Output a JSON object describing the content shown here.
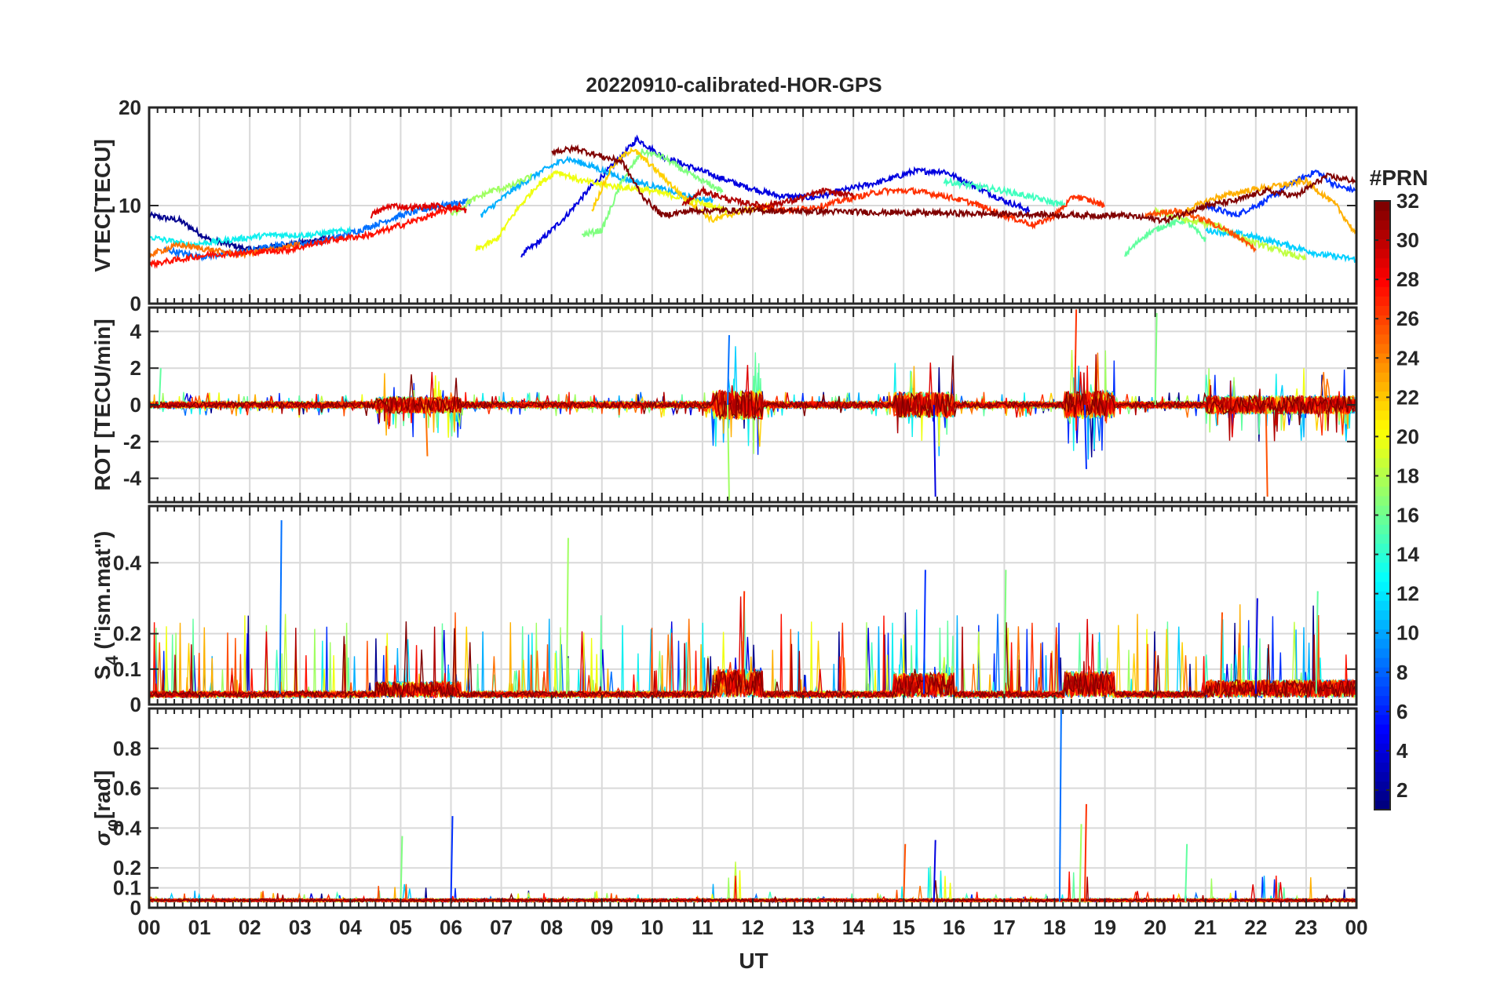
{
  "chart_data": {
    "type": "line",
    "title": "20220910-calibrated-HOR-GPS",
    "xlabel": "UT",
    "x_tick_labels": [
      "00",
      "01",
      "02",
      "03",
      "04",
      "05",
      "06",
      "07",
      "08",
      "09",
      "10",
      "11",
      "12",
      "13",
      "14",
      "15",
      "16",
      "17",
      "18",
      "19",
      "20",
      "21",
      "22",
      "23",
      "00"
    ],
    "xlim": [
      0,
      24
    ],
    "grid": true,
    "colormap": "jet",
    "colorbar": {
      "title": "#PRN",
      "range": [
        1,
        32
      ],
      "tick_labels": [
        "2",
        "4",
        "6",
        "8",
        "10",
        "12",
        "14",
        "16",
        "18",
        "20",
        "22",
        "24",
        "26",
        "28",
        "30",
        "32"
      ]
    },
    "panels": [
      {
        "id": "vtec",
        "ylabel": "VTEC[TECU]",
        "ylim": [
          0,
          20
        ],
        "yticks": [
          0,
          10,
          20
        ],
        "ytick_labels": [
          "0",
          "10",
          "20"
        ],
        "description_values": {
          "typical_range": [
            3,
            17
          ]
        }
      },
      {
        "id": "rot",
        "ylabel": "ROT [TECU/min]",
        "ylim": [
          -5.3,
          5.3
        ],
        "yticks": [
          -4,
          -2,
          0,
          2,
          4
        ],
        "ytick_labels": [
          "-4",
          "-2",
          "0",
          "2",
          "4"
        ]
      },
      {
        "id": "s4",
        "ylabel": "S4 (\"ism.mat\")",
        "ylabel_base": "S",
        "ylabel_sub": "4",
        "ylabel_rest": " (\"ism.mat\")",
        "ylim": [
          0,
          0.56
        ],
        "yticks": [
          0,
          0.1,
          0.2,
          0.4
        ],
        "ytick_labels": [
          "0",
          "0.1",
          "0.2",
          "0.4"
        ]
      },
      {
        "id": "sigma",
        "ylabel": "σφ[rad]",
        "ylabel_base": "σ",
        "ylabel_sub": "φ",
        "ylabel_rest": "[rad]",
        "ylim": [
          0,
          1.0
        ],
        "yticks": [
          0,
          0.1,
          0.2,
          0.4,
          0.6,
          0.8
        ],
        "ytick_labels": [
          "0",
          "0.1",
          "0.2",
          "0.4",
          "0.6",
          "0.8"
        ]
      }
    ],
    "series": [
      {
        "prn": 2,
        "color": "#00008f",
        "vtec": [
          [
            0.0,
            9.0
          ],
          [
            0.6,
            8.5
          ],
          [
            1.2,
            6.5
          ],
          [
            2.0,
            5.5
          ],
          [
            2.8,
            6.0
          ],
          [
            3.6,
            6.8
          ]
        ]
      },
      {
        "prn": 4,
        "color": "#0000df",
        "vtec": [
          [
            7.4,
            5.0
          ],
          [
            7.8,
            6.5
          ],
          [
            8.3,
            9.0
          ],
          [
            8.8,
            12.0
          ],
          [
            9.3,
            14.5
          ],
          [
            9.7,
            16.8
          ],
          [
            10.2,
            15.0
          ],
          [
            11.0,
            13.5
          ],
          [
            11.8,
            12.0
          ],
          [
            12.5,
            11.0
          ],
          [
            13.2,
            10.8
          ],
          [
            14.0,
            11.8
          ],
          [
            14.6,
            12.5
          ],
          [
            15.2,
            13.5
          ],
          [
            15.8,
            13.5
          ],
          [
            16.4,
            12.0
          ],
          [
            17.0,
            10.5
          ],
          [
            17.5,
            9.5
          ]
        ]
      },
      {
        "prn": 6,
        "color": "#002fff",
        "vtec": [
          [
            21.0,
            10.0
          ],
          [
            21.6,
            9.0
          ],
          [
            22.2,
            10.5
          ],
          [
            22.8,
            12.5
          ],
          [
            23.2,
            13.5
          ],
          [
            23.6,
            12.0
          ],
          [
            24.0,
            11.5
          ]
        ]
      },
      {
        "prn": 9,
        "color": "#0070ff",
        "vtec": [
          [
            0.3,
            5.5
          ],
          [
            1.0,
            4.8
          ],
          [
            1.8,
            5.2
          ],
          [
            2.6,
            6.0
          ],
          [
            3.4,
            6.3
          ],
          [
            4.2,
            7.5
          ],
          [
            5.0,
            9.0
          ],
          [
            5.8,
            10.0
          ],
          [
            6.4,
            10.5
          ]
        ]
      },
      {
        "prn": 11,
        "color": "#00afff",
        "vtec": [
          [
            6.6,
            9.0
          ],
          [
            7.2,
            11.5
          ],
          [
            7.8,
            13.5
          ],
          [
            8.3,
            14.8
          ],
          [
            8.8,
            14.0
          ],
          [
            9.4,
            12.8
          ],
          [
            10.0,
            12.0
          ],
          [
            10.6,
            11.0
          ],
          [
            11.2,
            10.5
          ]
        ]
      },
      {
        "prn": 12,
        "color": "#00cfff",
        "vtec": [
          [
            21.0,
            7.5
          ],
          [
            21.8,
            7.0
          ],
          [
            22.6,
            6.0
          ],
          [
            23.3,
            5.0
          ],
          [
            24.0,
            4.5
          ]
        ]
      },
      {
        "prn": 13,
        "color": "#10efef",
        "vtec": [
          [
            0.0,
            6.8
          ],
          [
            0.8,
            6.0
          ],
          [
            1.6,
            6.5
          ],
          [
            2.4,
            7.0
          ],
          [
            3.2,
            7.0
          ],
          [
            4.0,
            7.5
          ]
        ]
      },
      {
        "prn": 15,
        "color": "#40ffbf",
        "vtec": [
          [
            15.8,
            12.5
          ],
          [
            16.4,
            12.0
          ],
          [
            17.0,
            11.5
          ],
          [
            17.6,
            10.8
          ],
          [
            18.2,
            10.0
          ]
        ]
      },
      {
        "prn": 16,
        "color": "#60ff9f",
        "vtec": [
          [
            19.4,
            5.0
          ],
          [
            19.8,
            7.0
          ],
          [
            20.2,
            8.0
          ],
          [
            20.6,
            8.5
          ],
          [
            21.0,
            6.5
          ]
        ]
      },
      {
        "prn": 17,
        "color": "#80ff80",
        "vtec": [
          [
            8.6,
            7.0
          ],
          [
            9.0,
            7.5
          ],
          [
            9.4,
            12.5
          ],
          [
            9.8,
            15.5
          ],
          [
            10.2,
            15.0
          ],
          [
            10.8,
            13.0
          ],
          [
            11.4,
            11.5
          ]
        ]
      },
      {
        "prn": 18,
        "color": "#9fff60",
        "vtec": [
          [
            6.0,
            9.0
          ],
          [
            6.4,
            10.5
          ],
          [
            6.8,
            11.5
          ],
          [
            7.2,
            12.0
          ],
          [
            7.6,
            13.0
          ]
        ]
      },
      {
        "prn": 19,
        "color": "#bfff40",
        "vtec": [
          [
            20.0,
            9.5
          ],
          [
            20.6,
            8.5
          ],
          [
            21.2,
            8.0
          ],
          [
            21.8,
            6.5
          ],
          [
            22.4,
            5.5
          ],
          [
            23.0,
            4.5
          ]
        ]
      },
      {
        "prn": 20,
        "color": "#efff10",
        "vtec": [
          [
            6.5,
            5.5
          ],
          [
            6.9,
            6.5
          ],
          [
            7.3,
            9.5
          ],
          [
            7.7,
            12.0
          ],
          [
            8.1,
            13.5
          ],
          [
            8.6,
            12.5
          ],
          [
            9.2,
            12.0
          ],
          [
            10.0,
            11.5
          ],
          [
            10.8,
            10.5
          ],
          [
            11.5,
            9.5
          ]
        ]
      },
      {
        "prn": 21,
        "color": "#ffcf00",
        "vtec": [
          [
            8.8,
            9.5
          ],
          [
            9.2,
            14.0
          ],
          [
            9.6,
            15.8
          ],
          [
            10.0,
            14.0
          ],
          [
            10.6,
            11.0
          ],
          [
            11.2,
            8.5
          ],
          [
            11.8,
            9.5
          ],
          [
            12.4,
            10.0
          ]
        ]
      },
      {
        "prn": 22,
        "color": "#ffaf00",
        "vtec": [
          [
            20.6,
            9.5
          ],
          [
            21.2,
            10.8
          ],
          [
            21.8,
            11.5
          ],
          [
            22.4,
            12.0
          ],
          [
            23.0,
            12.5
          ],
          [
            23.6,
            10.0
          ],
          [
            24.0,
            7.0
          ]
        ]
      },
      {
        "prn": 24,
        "color": "#ff7000",
        "vtec": [
          [
            0.0,
            5.0
          ],
          [
            0.6,
            6.0
          ],
          [
            1.2,
            5.5
          ],
          [
            1.8,
            5.0
          ],
          [
            2.4,
            5.5
          ],
          [
            3.0,
            6.0
          ]
        ]
      },
      {
        "prn": 25,
        "color": "#ff5000",
        "vtec": [
          [
            19.8,
            9.0
          ],
          [
            20.4,
            9.5
          ],
          [
            21.0,
            8.5
          ],
          [
            21.6,
            7.0
          ],
          [
            22.0,
            5.5
          ]
        ]
      },
      {
        "prn": 26,
        "color": "#ff3000",
        "vtec": [
          [
            12.0,
            10.0
          ],
          [
            12.8,
            9.5
          ],
          [
            13.4,
            10.0
          ],
          [
            14.0,
            10.8
          ],
          [
            14.6,
            11.5
          ],
          [
            15.2,
            11.5
          ],
          [
            15.8,
            11.0
          ],
          [
            16.4,
            10.2
          ],
          [
            17.0,
            9.0
          ],
          [
            17.6,
            8.0
          ],
          [
            18.0,
            9.0
          ],
          [
            18.4,
            11.0
          ],
          [
            19.0,
            10.0
          ]
        ]
      },
      {
        "prn": 27,
        "color": "#ff1000",
        "vtec": [
          [
            0.0,
            4.0
          ],
          [
            0.6,
            4.5
          ],
          [
            1.2,
            5.0
          ],
          [
            2.0,
            5.2
          ],
          [
            2.8,
            5.5
          ],
          [
            3.6,
            6.5
          ],
          [
            4.4,
            7.0
          ],
          [
            5.0,
            8.0
          ],
          [
            5.6,
            9.0
          ],
          [
            6.2,
            10.0
          ]
        ]
      },
      {
        "prn": 28,
        "color": "#df0000",
        "vtec": [
          [
            4.4,
            9.0
          ],
          [
            4.8,
            10.0
          ],
          [
            5.2,
            9.8
          ],
          [
            5.8,
            10.0
          ],
          [
            6.3,
            9.5
          ]
        ]
      },
      {
        "prn": 30,
        "color": "#af0000",
        "vtec": [
          [
            10.6,
            10.0
          ],
          [
            11.0,
            11.5
          ],
          [
            11.6,
            10.5
          ],
          [
            12.2,
            10.0
          ],
          [
            12.8,
            10.5
          ],
          [
            13.4,
            11.5
          ],
          [
            14.0,
            11.0
          ]
        ]
      },
      {
        "prn": 32,
        "color": "#800000",
        "vtec": [
          [
            8.0,
            15.5
          ],
          [
            8.5,
            15.8
          ],
          [
            9.0,
            15.0
          ],
          [
            9.4,
            14.5
          ],
          [
            9.8,
            11.0
          ],
          [
            10.2,
            9.0
          ],
          [
            10.8,
            9.5
          ],
          [
            11.4,
            9.5
          ],
          [
            12.0,
            9.5
          ],
          [
            18.8,
            9.0
          ],
          [
            19.4,
            9.0
          ],
          [
            20.2,
            8.5
          ],
          [
            21.0,
            10.0
          ],
          [
            21.6,
            10.5
          ],
          [
            22.2,
            11.5
          ],
          [
            22.8,
            11.0
          ],
          [
            23.4,
            13.0
          ],
          [
            24.0,
            12.5
          ]
        ]
      }
    ],
    "peak_marks": {
      "rot": [
        [
          11.5,
          3.8
        ],
        [
          11.5,
          -5.2
        ],
        [
          18.4,
          5.2
        ],
        [
          18.6,
          -3.5
        ],
        [
          20.0,
          5.0
        ],
        [
          22.2,
          -5.0
        ],
        [
          15.6,
          -5.0
        ],
        [
          0.2,
          2.0
        ],
        [
          5.5,
          -2.8
        ]
      ],
      "s4": [
        [
          2.6,
          0.52
        ],
        [
          8.3,
          0.47
        ],
        [
          11.8,
          0.32
        ],
        [
          15.4,
          0.38
        ],
        [
          17.0,
          0.38
        ],
        [
          21.3,
          0.26
        ],
        [
          22.0,
          0.3
        ],
        [
          23.2,
          0.32
        ]
      ],
      "sigma": [
        [
          18.1,
          1.0
        ],
        [
          18.5,
          0.42
        ],
        [
          18.6,
          0.52
        ],
        [
          6.0,
          0.46
        ],
        [
          5.0,
          0.36
        ],
        [
          15.0,
          0.32
        ],
        [
          15.6,
          0.34
        ],
        [
          20.6,
          0.32
        ]
      ]
    }
  }
}
